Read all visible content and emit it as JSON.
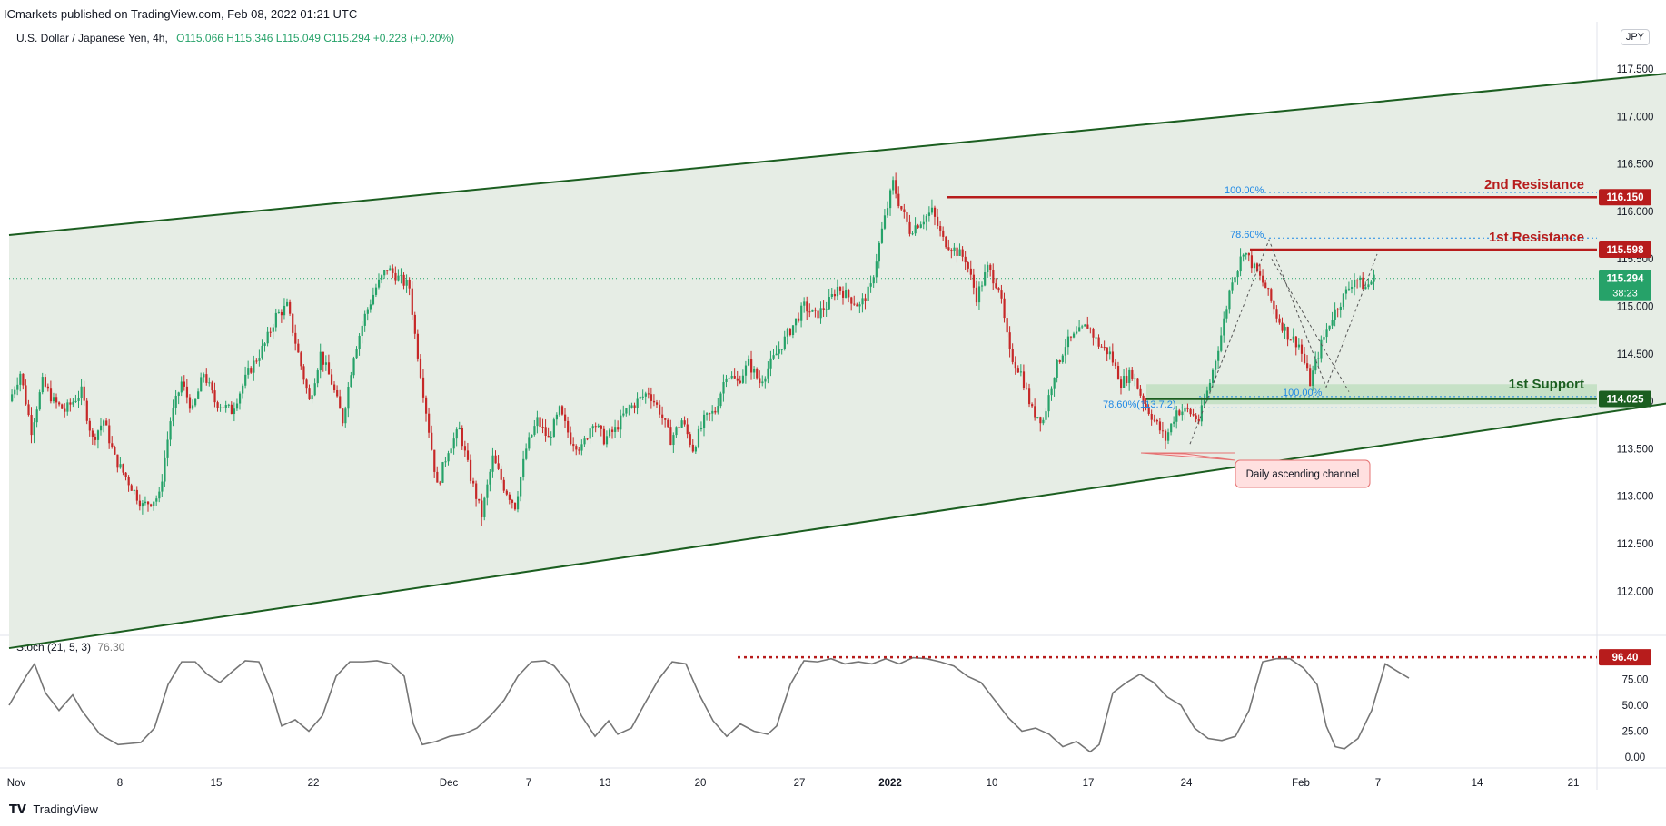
{
  "header": {
    "publisher_line": "ICmarkets published on TradingView.com, Feb 08, 2022 01:21 UTC"
  },
  "symbol": {
    "name": "U.S. Dollar / Japanese Yen, 4h,",
    "ohlc": "O115.066  H115.346  L115.049  C115.294  +0.228 (+0.20%)"
  },
  "currency_tag": "JPY",
  "price_axis_ticks": [
    "117.500",
    "117.000",
    "116.500",
    "116.000",
    "115.500",
    "115.000",
    "114.500",
    "114.000",
    "113.500",
    "113.000",
    "112.500",
    "112.000"
  ],
  "time_axis_ticks": [
    "Nov",
    "8",
    "15",
    "22",
    "Dec",
    "7",
    "13",
    "20",
    "27",
    "2022",
    "10",
    "17",
    "24",
    "Feb",
    "7",
    "14",
    "21"
  ],
  "annotations": {
    "second_resistance": "2nd Resistance",
    "first_resistance": "1st Resistance",
    "first_support": "1st Support",
    "channel_label": "Daily ascending channel",
    "fib_100_top": "100.00%",
    "fib_786_top": "78.60%",
    "fib_100_bottom": "100.00%",
    "fib_786_bottom": "78.60%(113.7.2)"
  },
  "price_tags": {
    "second_resistance": "116.150",
    "first_resistance": "115.598",
    "current_price": "115.294",
    "countdown": "38:23",
    "first_support": "114.025",
    "stoch_level": "96.40"
  },
  "stoch": {
    "label": "Stoch (21, 5, 3)",
    "value": "76.30",
    "axis_ticks": [
      "75.00",
      "50.00",
      "25.00",
      "0.00"
    ]
  },
  "footer": {
    "brand": "TradingView"
  },
  "colors": {
    "up": "#26a269",
    "down": "#c62828",
    "channel_fill": "#e6ede5",
    "channel_line": "#1b5e20",
    "resistance": "#b71c1c",
    "support": "#1b5e20",
    "fib": "#1e88e5",
    "stoch": "#757575"
  },
  "chart_data": {
    "type": "candlestick",
    "symbol": "USDJPY",
    "timeframe": "4h",
    "ylim": [
      111.6,
      117.8
    ],
    "levels": {
      "second_resistance": 116.15,
      "first_resistance": 115.598,
      "first_support": 114.025,
      "current": 115.294
    },
    "channel": {
      "upper": [
        {
          "date": "2021-11-01",
          "price": 115.75
        },
        {
          "date": "2022-02-25",
          "price": 117.73
        }
      ],
      "lower": [
        {
          "date": "2021-11-01",
          "price": 111.4
        },
        {
          "date": "2022-02-25",
          "price": 114.4
        }
      ]
    },
    "close_path": [
      [
        0,
        114.0
      ],
      [
        4,
        114.3
      ],
      [
        8,
        113.7
      ],
      [
        12,
        114.2
      ],
      [
        16,
        114.0
      ],
      [
        20,
        113.9
      ],
      [
        26,
        114.1
      ],
      [
        30,
        113.6
      ],
      [
        34,
        113.8
      ],
      [
        38,
        113.4
      ],
      [
        44,
        113.1
      ],
      [
        48,
        112.9
      ],
      [
        54,
        113.0
      ],
      [
        58,
        113.8
      ],
      [
        62,
        114.2
      ],
      [
        66,
        113.9
      ],
      [
        70,
        114.3
      ],
      [
        74,
        114.0
      ],
      [
        80,
        113.9
      ],
      [
        86,
        114.3
      ],
      [
        92,
        114.6
      ],
      [
        96,
        114.9
      ],
      [
        100,
        115.0
      ],
      [
        104,
        114.5
      ],
      [
        108,
        114.0
      ],
      [
        112,
        114.5
      ],
      [
        116,
        114.2
      ],
      [
        120,
        113.8
      ],
      [
        124,
        114.5
      ],
      [
        128,
        114.9
      ],
      [
        132,
        115.2
      ],
      [
        136,
        115.4
      ],
      [
        140,
        115.3
      ],
      [
        144,
        115.2
      ],
      [
        146,
        114.7
      ],
      [
        150,
        113.9
      ],
      [
        154,
        113.1
      ],
      [
        158,
        113.5
      ],
      [
        162,
        113.7
      ],
      [
        166,
        113.2
      ],
      [
        170,
        112.8
      ],
      [
        174,
        113.4
      ],
      [
        178,
        113.1
      ],
      [
        182,
        112.9
      ],
      [
        186,
        113.5
      ],
      [
        190,
        113.8
      ],
      [
        194,
        113.6
      ],
      [
        198,
        113.9
      ],
      [
        202,
        113.6
      ],
      [
        206,
        113.5
      ],
      [
        210,
        113.8
      ],
      [
        214,
        113.6
      ],
      [
        218,
        113.7
      ],
      [
        222,
        113.9
      ],
      [
        226,
        114.0
      ],
      [
        230,
        114.1
      ],
      [
        234,
        113.9
      ],
      [
        238,
        113.6
      ],
      [
        242,
        113.8
      ],
      [
        246,
        113.5
      ],
      [
        250,
        113.8
      ],
      [
        254,
        113.9
      ],
      [
        258,
        114.3
      ],
      [
        262,
        114.2
      ],
      [
        266,
        114.4
      ],
      [
        270,
        114.2
      ],
      [
        274,
        114.4
      ],
      [
        278,
        114.6
      ],
      [
        282,
        114.8
      ],
      [
        286,
        115.0
      ],
      [
        290,
        114.9
      ],
      [
        294,
        115.0
      ],
      [
        298,
        115.2
      ],
      [
        302,
        115.1
      ],
      [
        306,
        115.0
      ],
      [
        310,
        115.2
      ],
      [
        314,
        115.8
      ],
      [
        318,
        116.3
      ],
      [
        320,
        116.1
      ],
      [
        324,
        115.8
      ],
      [
        328,
        115.9
      ],
      [
        332,
        116.0
      ],
      [
        336,
        115.7
      ],
      [
        340,
        115.6
      ],
      [
        344,
        115.5
      ],
      [
        348,
        115.1
      ],
      [
        352,
        115.4
      ],
      [
        356,
        115.2
      ],
      [
        360,
        114.5
      ],
      [
        364,
        114.3
      ],
      [
        368,
        113.9
      ],
      [
        372,
        113.8
      ],
      [
        376,
        114.3
      ],
      [
        380,
        114.6
      ],
      [
        384,
        114.7
      ],
      [
        388,
        114.8
      ],
      [
        392,
        114.6
      ],
      [
        396,
        114.5
      ],
      [
        400,
        114.2
      ],
      [
        404,
        114.3
      ],
      [
        408,
        114.0
      ],
      [
        412,
        113.8
      ],
      [
        416,
        113.6
      ],
      [
        420,
        113.9
      ],
      [
        424,
        113.9
      ],
      [
        428,
        113.8
      ],
      [
        432,
        114.2
      ],
      [
        436,
        114.7
      ],
      [
        440,
        115.3
      ],
      [
        442,
        115.4
      ],
      [
        444,
        115.6
      ],
      [
        448,
        115.4
      ],
      [
        452,
        115.2
      ],
      [
        456,
        114.9
      ],
      [
        460,
        114.7
      ],
      [
        464,
        114.6
      ],
      [
        468,
        114.2
      ],
      [
        472,
        114.6
      ],
      [
        476,
        114.9
      ],
      [
        480,
        115.1
      ],
      [
        484,
        115.3
      ],
      [
        488,
        115.2
      ],
      [
        491,
        115.294
      ]
    ],
    "stochastic": {
      "params": "21, 5, 3",
      "current": 76.3,
      "level": 96.4,
      "ylim": [
        0,
        100
      ]
    }
  }
}
